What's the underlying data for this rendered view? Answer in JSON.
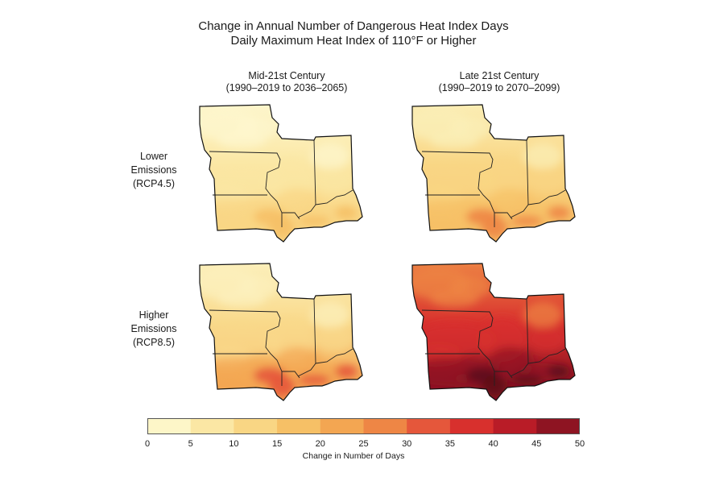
{
  "title": {
    "line1": "Change in Annual Number of Dangerous Heat Index Days",
    "line2": "Daily Maximum Heat Index of 110°F or Higher"
  },
  "columns": [
    {
      "line1": "Mid-21st Century",
      "line2": "(1990–2019 to 2036–2065)"
    },
    {
      "line1": "Late 21st Century",
      "line2": "(1990–2019 to 2070–2099)"
    }
  ],
  "rows": [
    {
      "line1": "Lower",
      "line2": "Emissions",
      "line3": "(RCP4.5)"
    },
    {
      "line1": "Higher",
      "line2": "Emissions",
      "line3": "(RCP8.5)"
    }
  ],
  "legend": {
    "title": "Change in Number of Days",
    "ticks": [
      "0",
      "5",
      "10",
      "15",
      "20",
      "25",
      "30",
      "35",
      "40",
      "45",
      "50"
    ],
    "colors": [
      "#fdf6c8",
      "#fbe7a4",
      "#f9d684",
      "#f6c066",
      "#f3a652",
      "#ee8645",
      "#e5573b",
      "#d8302d",
      "#b91c27",
      "#8e1422",
      "#5e0d1a"
    ]
  },
  "panels": [
    {
      "scenario": "RCP4.5",
      "period": "Mid-21st Century",
      "north": "#fdf7cf",
      "mid": "#fbe7a4",
      "south": "#f9d684",
      "hot": "#f6c066"
    },
    {
      "scenario": "RCP4.5",
      "period": "Late 21st Century",
      "north": "#fbefb8",
      "mid": "#f9d684",
      "south": "#f6c066",
      "hot": "#ee8645"
    },
    {
      "scenario": "RCP8.5",
      "period": "Mid-21st Century",
      "north": "#fcf1be",
      "mid": "#f9d98a",
      "south": "#f3a652",
      "hot": "#e5573b"
    },
    {
      "scenario": "RCP8.5",
      "period": "Late 21st Century",
      "north": "#ee8645",
      "mid": "#d8302d",
      "south": "#8e1422",
      "hot": "#5e0d1a"
    }
  ]
}
